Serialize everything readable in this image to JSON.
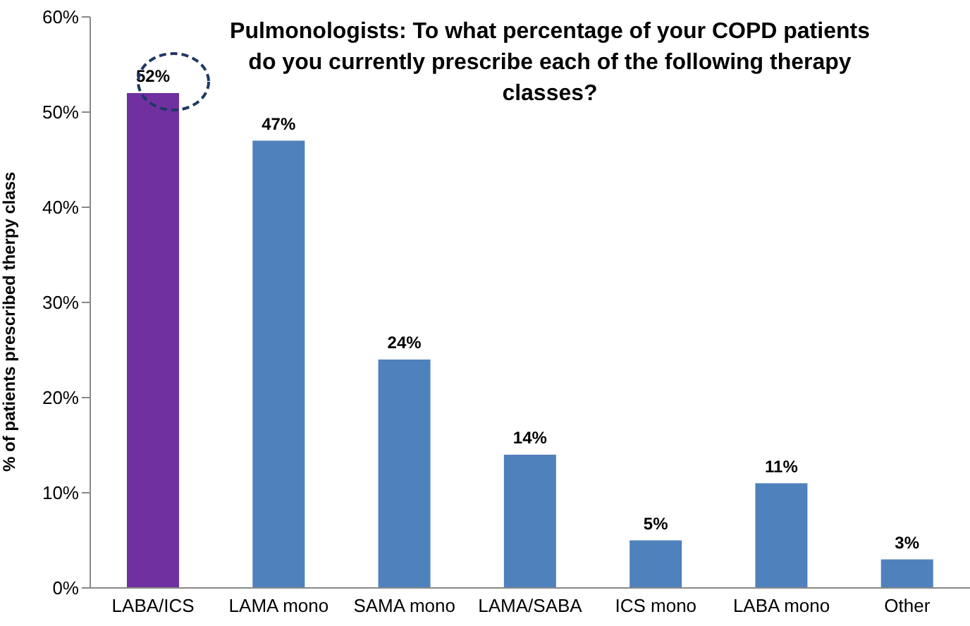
{
  "chart_data": {
    "type": "bar",
    "title": "Pulmonologists: To what percentage of your COPD patients do you currently prescribe each of the following therapy classes?",
    "ylabel": "% of patients prescribed therpy class",
    "categories": [
      "LABA/ICS",
      "LAMA mono",
      "SAMA mono",
      "LAMA/SABA",
      "ICS mono",
      "LABA mono",
      "Other"
    ],
    "values": [
      52,
      47,
      24,
      14,
      5,
      11,
      3
    ],
    "colors": [
      "#7030a0",
      "#4f81bd",
      "#4f81bd",
      "#4f81bd",
      "#4f81bd",
      "#4f81bd",
      "#4f81bd"
    ],
    "value_labels": [
      "52%",
      "47%",
      "24%",
      "14%",
      "5%",
      "11%",
      "3%"
    ],
    "ylim": [
      0,
      60
    ],
    "yticks": [
      {
        "value": 0,
        "label": "0%"
      },
      {
        "value": 10,
        "label": "10%"
      },
      {
        "value": 20,
        "label": "20%"
      },
      {
        "value": 30,
        "label": "30%"
      },
      {
        "value": 40,
        "label": "40%"
      },
      {
        "value": 50,
        "label": "50%"
      },
      {
        "value": 60,
        "label": "60%"
      }
    ],
    "grid": false,
    "legend": false
  }
}
